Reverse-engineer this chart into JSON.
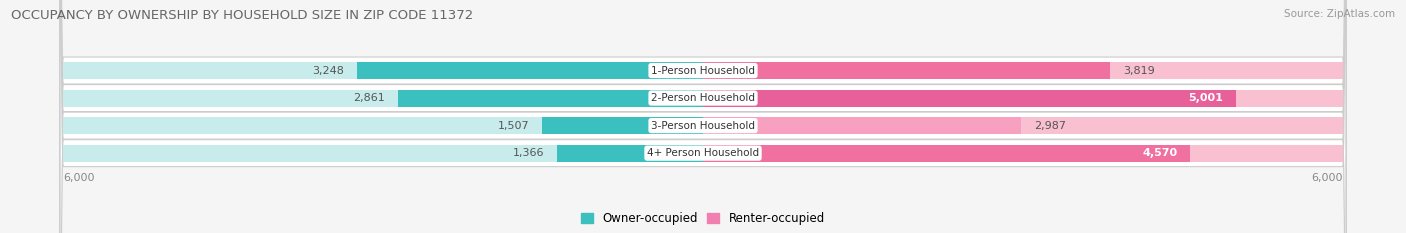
{
  "title": "OCCUPANCY BY OWNERSHIP BY HOUSEHOLD SIZE IN ZIP CODE 11372",
  "source": "Source: ZipAtlas.com",
  "categories": [
    "1-Person Household",
    "2-Person Household",
    "3-Person Household",
    "4+ Person Household"
  ],
  "owner_values": [
    3248,
    2861,
    1507,
    1366
  ],
  "renter_values": [
    3819,
    5001,
    2987,
    4570
  ],
  "owner_color": "#3bbfbf",
  "renter_color_dark": [
    "#f070a0",
    "#e8609a",
    "#f8a0c0",
    "#f070a0"
  ],
  "renter_color_light": "#f8c0d0",
  "owner_light_color": "#c8ecec",
  "row_bg_color": "#ebebeb",
  "background_color": "#f5f5f5",
  "title_fontsize": 9.5,
  "axis_max": 6000,
  "legend_label_owner": "Owner-occupied",
  "legend_label_renter": "Renter-occupied",
  "owner_label_color": "#555555",
  "renter_label_inside_color": "#ffffff",
  "renter_label_outside_color": "#555555",
  "renter_inside_threshold": 4000
}
